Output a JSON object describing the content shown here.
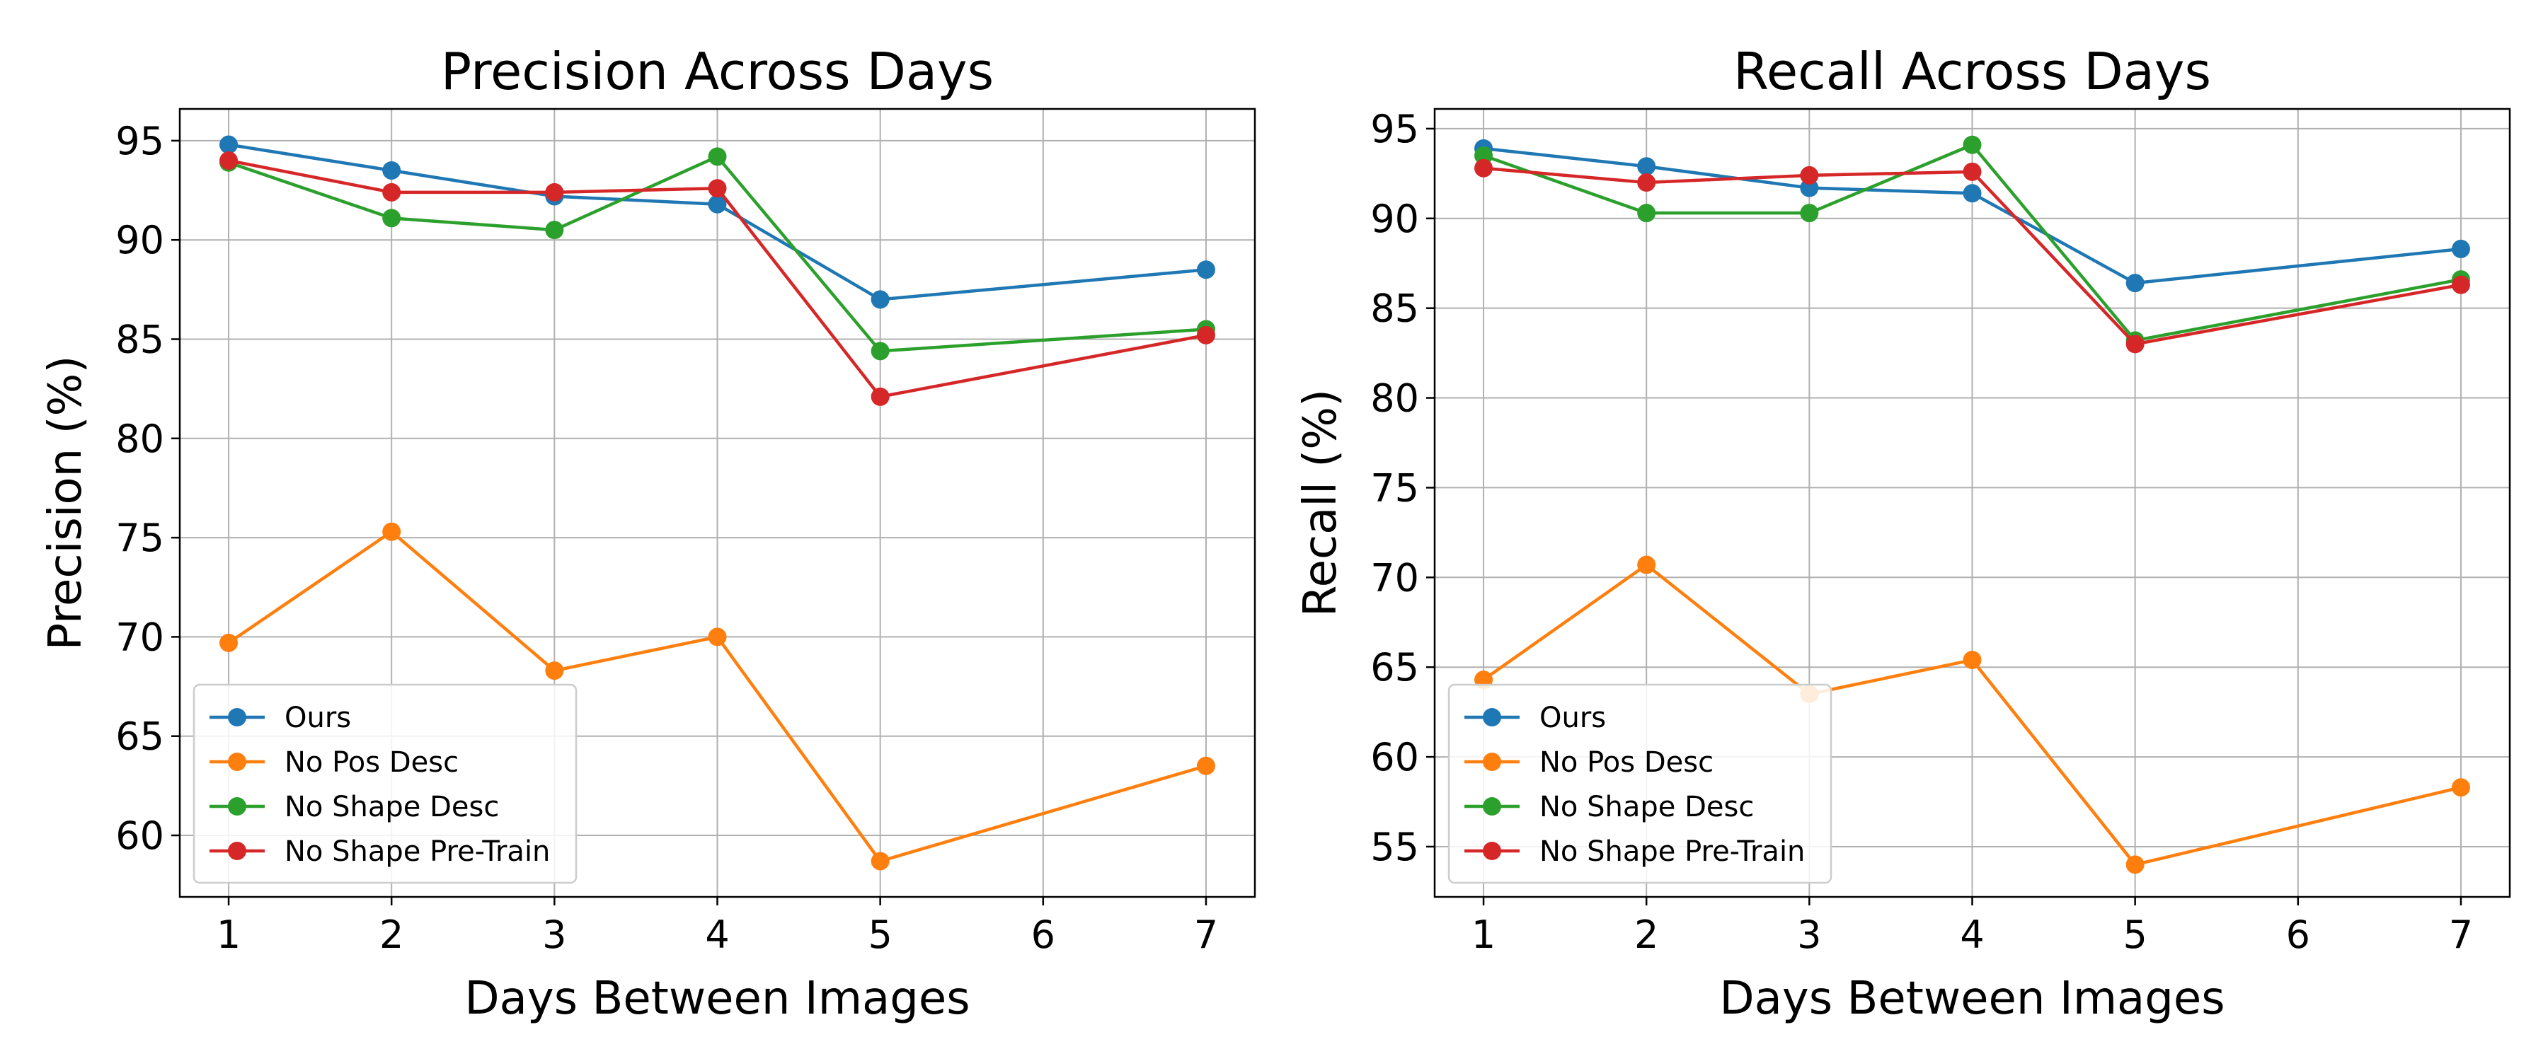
{
  "chart_data": [
    {
      "type": "line",
      "title": "Precision Across Days",
      "xlabel": "Days Between Images",
      "ylabel": "Precision (%)",
      "xlim": [
        0.7,
        7.3
      ],
      "ylim": [
        56.9,
        96.6
      ],
      "xticks": [
        1,
        2,
        3,
        4,
        5,
        6,
        7
      ],
      "yticks": [
        60,
        65,
        70,
        75,
        80,
        85,
        90,
        95
      ],
      "grid": true,
      "legend_position": "lower-left",
      "series": [
        {
          "name": "Ours",
          "color": "#1f77b4",
          "x": [
            1,
            2,
            3,
            4,
            5,
            7
          ],
          "values": [
            94.8,
            93.5,
            92.2,
            91.8,
            87.0,
            88.5
          ]
        },
        {
          "name": "No Pos Desc",
          "color": "#ff7f0e",
          "x": [
            1,
            2,
            3,
            4,
            5,
            7
          ],
          "values": [
            69.7,
            75.3,
            68.3,
            70.0,
            58.7,
            63.5
          ]
        },
        {
          "name": "No Shape Desc",
          "color": "#2ca02c",
          "x": [
            1,
            2,
            3,
            4,
            5,
            7
          ],
          "values": [
            93.9,
            91.1,
            90.5,
            94.2,
            84.4,
            85.5
          ]
        },
        {
          "name": "No Shape Pre-Train",
          "color": "#d62728",
          "x": [
            1,
            2,
            3,
            4,
            5,
            7
          ],
          "values": [
            94.0,
            92.4,
            92.4,
            92.6,
            82.1,
            85.2
          ]
        }
      ]
    },
    {
      "type": "line",
      "title": "Recall Across Days",
      "xlabel": "Days Between Images",
      "ylabel": "Recall (%)",
      "xlim": [
        0.7,
        7.3
      ],
      "ylim": [
        52.2,
        96.1
      ],
      "xticks": [
        1,
        2,
        3,
        4,
        5,
        6,
        7
      ],
      "yticks": [
        55,
        60,
        65,
        70,
        75,
        80,
        85,
        90,
        95
      ],
      "grid": true,
      "legend_position": "lower-left",
      "series": [
        {
          "name": "Ours",
          "color": "#1f77b4",
          "x": [
            1,
            2,
            3,
            4,
            5,
            7
          ],
          "values": [
            93.9,
            92.9,
            91.7,
            91.4,
            86.4,
            88.3
          ]
        },
        {
          "name": "No Pos Desc",
          "color": "#ff7f0e",
          "x": [
            1,
            2,
            3,
            4,
            5,
            7
          ],
          "values": [
            64.3,
            70.7,
            63.5,
            65.4,
            54.0,
            58.3
          ]
        },
        {
          "name": "No Shape Desc",
          "color": "#2ca02c",
          "x": [
            1,
            2,
            3,
            4,
            5,
            7
          ],
          "values": [
            93.5,
            90.3,
            90.3,
            94.1,
            83.2,
            86.6
          ]
        },
        {
          "name": "No Shape Pre-Train",
          "color": "#d62728",
          "x": [
            1,
            2,
            3,
            4,
            5,
            7
          ],
          "values": [
            92.8,
            92.0,
            92.4,
            92.6,
            83.0,
            86.3
          ]
        }
      ]
    }
  ]
}
